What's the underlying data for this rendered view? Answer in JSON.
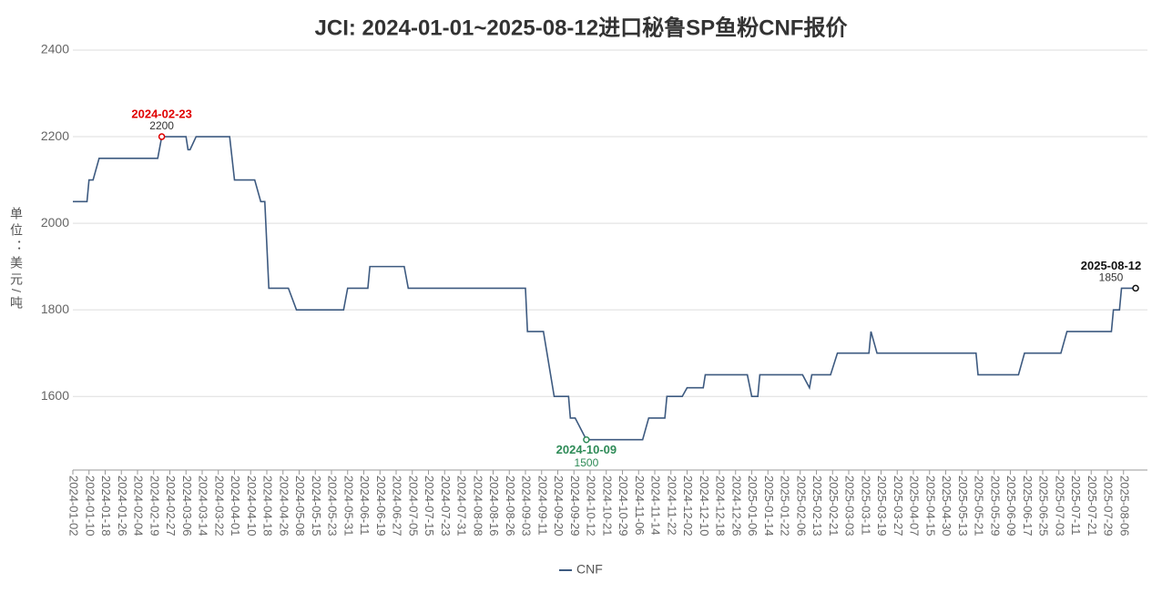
{
  "chart_data": {
    "type": "line",
    "title": "JCI: 2024-01-01~2025-08-12进口秘鲁SP鱼粉CNF报价",
    "y_label": "单位：美元/吨",
    "x": [
      "2024-01-02",
      "2024-01-09",
      "2024-01-10",
      "2024-01-12",
      "2024-01-15",
      "2024-02-21",
      "2024-02-23",
      "2024-03-06",
      "2024-03-07",
      "2024-03-08",
      "2024-03-11",
      "2024-03-29",
      "2024-04-01",
      "2024-04-12",
      "2024-04-15",
      "2024-04-17",
      "2024-04-19",
      "2024-04-30",
      "2024-05-06",
      "2024-05-29",
      "2024-05-31",
      "2024-06-13",
      "2024-06-14",
      "2024-07-01",
      "2024-07-03",
      "2024-09-03",
      "2024-09-04",
      "2024-09-12",
      "2024-09-18",
      "2024-09-26",
      "2024-09-27",
      "2024-09-30",
      "2024-10-09",
      "2024-11-08",
      "2024-11-11",
      "2024-11-19",
      "2024-11-20",
      "2024-11-29",
      "2024-12-02",
      "2024-12-10",
      "2024-12-11",
      "2025-01-03",
      "2025-01-06",
      "2025-01-09",
      "2025-01-10",
      "2025-02-07",
      "2025-02-10",
      "2025-02-11",
      "2025-02-20",
      "2025-02-24",
      "2025-03-13",
      "2025-03-14",
      "2025-03-17",
      "2025-05-20",
      "2025-05-21",
      "2025-06-13",
      "2025-06-16",
      "2025-07-04",
      "2025-07-07",
      "2025-07-31",
      "2025-08-01",
      "2025-08-04",
      "2025-08-05",
      "2025-08-12"
    ],
    "series": [
      {
        "name": "CNF",
        "color": "#3d5a80",
        "values": [
          2050,
          2050,
          2100,
          2100,
          2150,
          2150,
          2200,
          2200,
          2170,
          2170,
          2200,
          2200,
          2100,
          2100,
          2050,
          2050,
          1850,
          1850,
          1800,
          1800,
          1850,
          1850,
          1900,
          1900,
          1850,
          1850,
          1750,
          1750,
          1600,
          1600,
          1550,
          1550,
          1500,
          1500,
          1550,
          1550,
          1600,
          1600,
          1620,
          1620,
          1650,
          1650,
          1600,
          1600,
          1650,
          1650,
          1620,
          1650,
          1650,
          1700,
          1700,
          1750,
          1700,
          1700,
          1650,
          1650,
          1700,
          1700,
          1750,
          1750,
          1800,
          1800,
          1850,
          1850
        ]
      }
    ],
    "xticks": [
      "2024-01-02",
      "2024-01-10",
      "2024-01-18",
      "2024-01-26",
      "2024-02-04",
      "2024-02-19",
      "2024-02-27",
      "2024-03-06",
      "2024-03-14",
      "2024-03-22",
      "2024-04-01",
      "2024-04-10",
      "2024-04-18",
      "2024-04-26",
      "2024-05-08",
      "2024-05-15",
      "2024-05-23",
      "2024-05-31",
      "2024-06-11",
      "2024-06-19",
      "2024-06-27",
      "2024-07-05",
      "2024-07-15",
      "2024-07-23",
      "2024-07-31",
      "2024-08-08",
      "2024-08-16",
      "2024-08-26",
      "2024-09-03",
      "2024-09-11",
      "2024-09-20",
      "2024-09-29",
      "2024-10-12",
      "2024-10-21",
      "2024-10-29",
      "2024-11-06",
      "2024-11-14",
      "2024-11-22",
      "2024-12-02",
      "2024-12-10",
      "2024-12-18",
      "2024-12-26",
      "2025-01-06",
      "2025-01-14",
      "2025-01-22",
      "2025-02-06",
      "2025-02-13",
      "2025-02-21",
      "2025-03-03",
      "2025-03-11",
      "2025-03-19",
      "2025-03-27",
      "2025-04-07",
      "2025-04-15",
      "2025-04-30",
      "2025-05-13",
      "2025-05-21",
      "2025-05-29",
      "2025-06-09",
      "2025-06-17",
      "2025-06-25",
      "2025-07-03",
      "2025-07-11",
      "2025-07-21",
      "2025-07-29",
      "2025-08-06"
    ],
    "ylim": [
      1430,
      2400
    ],
    "yticks": [
      1600,
      1800,
      2000,
      2200,
      2400
    ],
    "grid": true,
    "legend": "bottom",
    "annotations": [
      {
        "x": "2024-02-23",
        "y": 2200,
        "color": "#e00000"
      },
      {
        "x": "2024-10-09",
        "y": 1500,
        "color": "#2e8b57"
      },
      {
        "x": "2025-08-12",
        "y": 1850,
        "color": "#111111"
      }
    ]
  }
}
